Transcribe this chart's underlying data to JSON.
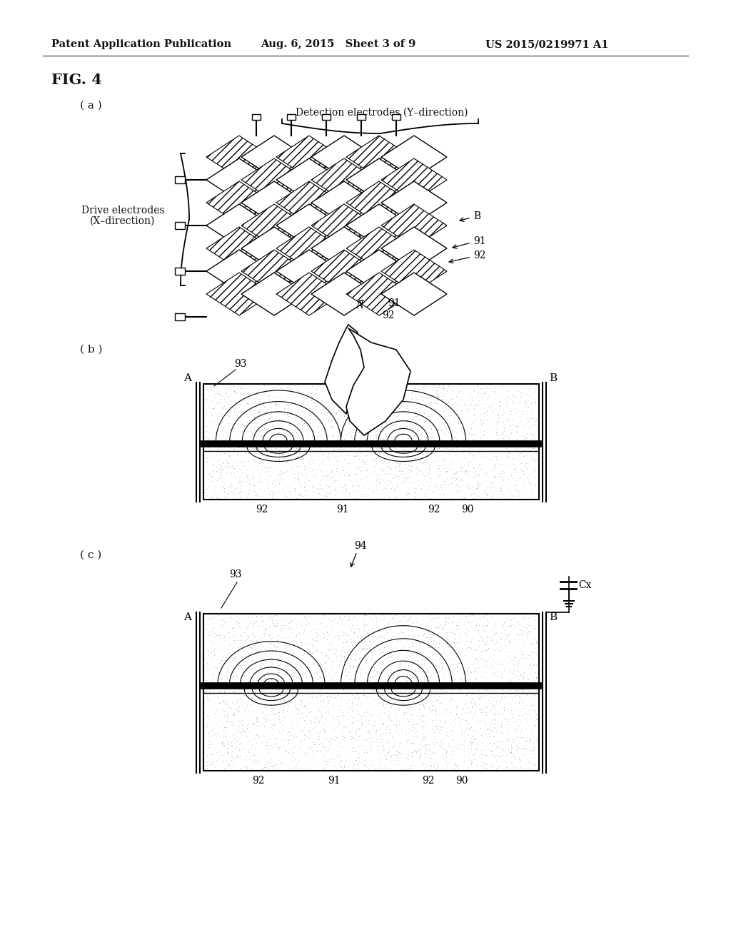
{
  "header_left": "Patent Application Publication",
  "header_mid": "Aug. 6, 2015   Sheet 3 of 9",
  "header_right": "US 2015/0219971 A1",
  "fig_label": "FIG. 4",
  "sub_a_label": "( a )",
  "sub_b_label": "( b )",
  "sub_c_label": "( c )",
  "detection_label": "Detection electrodes (Y–direction)",
  "drive_label1": "Drive electrodes",
  "drive_label2": "(X–direction)",
  "bg_color": "#ffffff"
}
